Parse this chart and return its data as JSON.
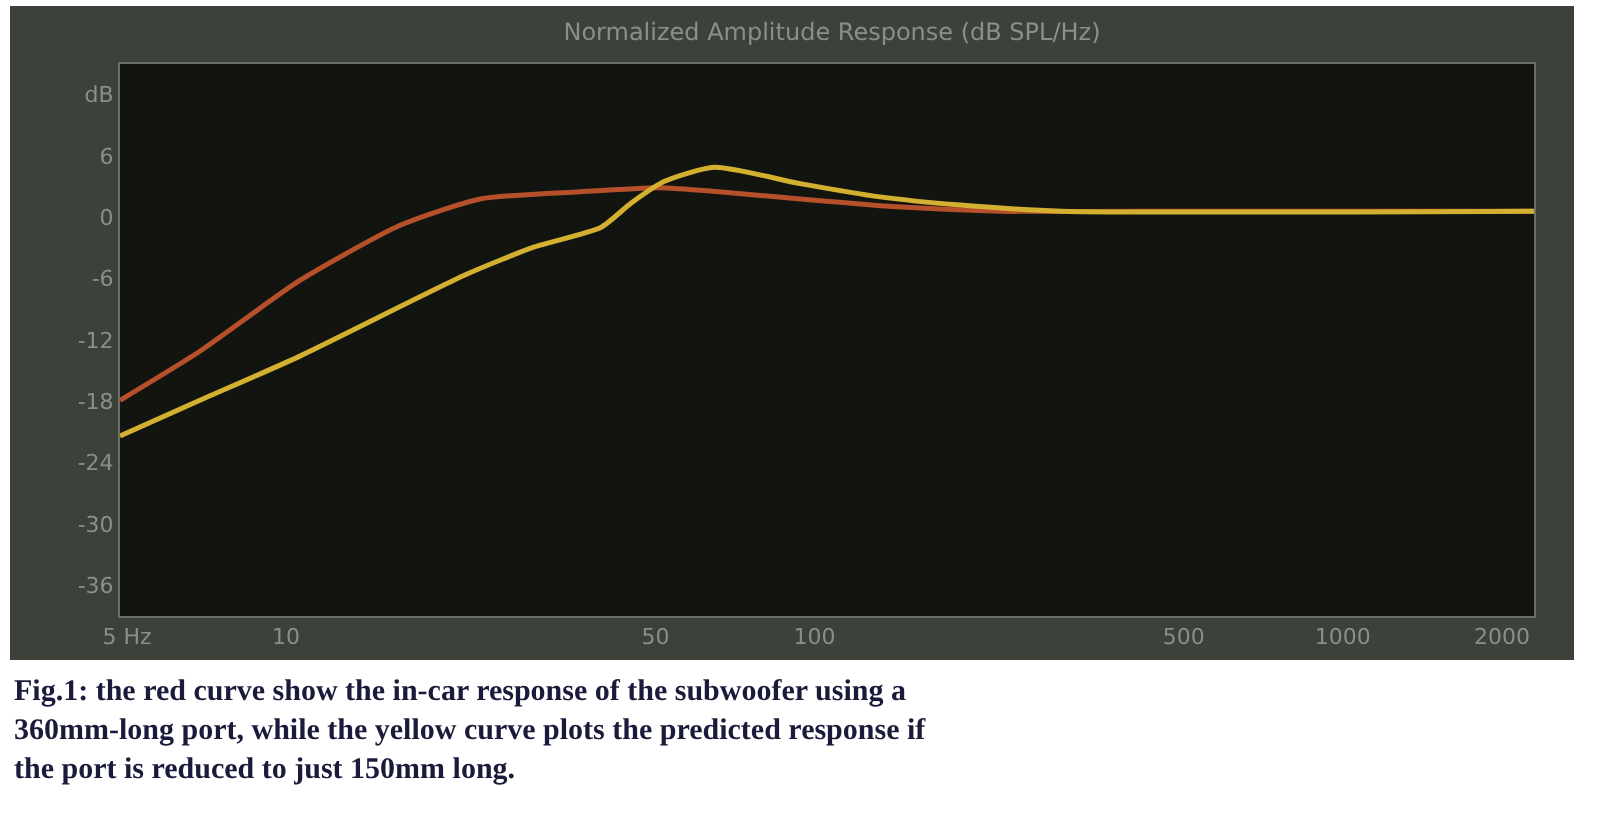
{
  "chart_data": {
    "type": "line",
    "title": "Normalized Amplitude Response (dB SPL/Hz)",
    "annotations": [
      "Fig.1: the red curve show the in-car response of the subwoofer using a 360mm-long port, while the yellow curve plots the predicted response if the port is reduced to just 150mm long."
    ],
    "log": "x",
    "grid": false,
    "marker": "none",
    "line_style": "solid",
    "xlim": [
      4.85,
      2300
    ],
    "xticks": [
      {
        "value": 5,
        "label": "5 Hz"
      },
      10,
      50,
      100,
      500,
      1000,
      2000
    ],
    "ylim": [
      -39,
      15
    ],
    "yticks": [
      {
        "value": 12,
        "label": "dB"
      },
      6,
      0,
      -6,
      -12,
      -18,
      -24,
      -30,
      -36
    ],
    "series": [
      {
        "color": "#b5502a",
        "x": [
          4.85,
          6.87,
          10.6,
          16.4,
          23.3,
          36,
          51,
          66,
          94,
          146,
          225,
          538,
          2300
        ],
        "values": [
          -17.9,
          -13.1,
          -6.2,
          -0.8,
          1.8,
          2.5,
          2.9,
          2.5,
          1.8,
          1.0,
          0.6,
          0.6,
          0.6
        ]
      },
      {
        "color": "#d4b030",
        "x": [
          4.85,
          6.87,
          10.6,
          21.9,
          29.5,
          39.4,
          45,
          51.9,
          64.7,
          94,
          133,
          189,
          293,
          2300
        ],
        "values": [
          -21.4,
          -17.9,
          -13.6,
          -5.6,
          -2.9,
          -1.0,
          1.4,
          3.5,
          4.9,
          3.3,
          2.0,
          1.2,
          0.6,
          0.6
        ]
      }
    ]
  }
}
